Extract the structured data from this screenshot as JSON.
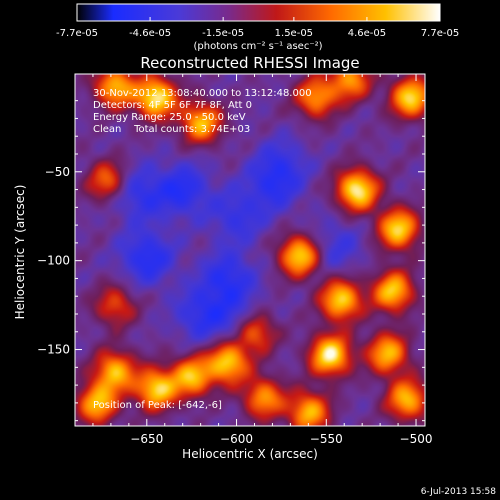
{
  "chart_data": {
    "type": "heatmap",
    "title": "Reconstructed RHESSI Image",
    "xlabel": "Heliocentric X (arcsec)",
    "ylabel": "Heliocentric Y (arcsec)",
    "xlim": [
      -690,
      -495
    ],
    "ylim": [
      -193,
      5
    ],
    "xticks": [
      -650,
      -600,
      -550,
      -500
    ],
    "yticks": [
      -50,
      -100,
      -150
    ],
    "colorbar": {
      "colormap": [
        "#000000",
        "#1a2cff",
        "#6a3aa8",
        "#7a2a6a",
        "#c01818",
        "#ff6a00",
        "#ffc000",
        "#ffffe0",
        "#ffffff"
      ],
      "min": -7.7e-05,
      "max": 7.7e-05,
      "tick_labels": [
        "-7.7e-05",
        "-4.6e-05",
        "-1.5e-05",
        "1.5e-05",
        "4.6e-05",
        "7.7e-05"
      ],
      "units": "(photons cm⁻² s⁻¹ asec⁻²)"
    },
    "annotations": {
      "time_range": "30-Nov-2012 13:08:40.000 to 13:12:48.000",
      "detectors": "Detectors: 4F 5F 6F 7F 8F, Att 0",
      "energy_range": "Energy Range: 25.0 - 50.0 keV",
      "method_counts": "Clean    Total counts: 3.74E+03",
      "peak": "Position of Peak: [-642,-6]"
    },
    "bright_regions": [
      {
        "x": -668,
        "y": -2,
        "level": 0.8
      },
      {
        "x": -645,
        "y": -8,
        "level": 1.0
      },
      {
        "x": -620,
        "y": -22,
        "level": 0.8
      },
      {
        "x": -556,
        "y": -8,
        "level": 0.7
      },
      {
        "x": -537,
        "y": 2,
        "level": 0.7
      },
      {
        "x": -503,
        "y": -8,
        "level": 0.9
      },
      {
        "x": -533,
        "y": -60,
        "level": 1.0
      },
      {
        "x": -510,
        "y": -82,
        "level": 0.9
      },
      {
        "x": -513,
        "y": -117,
        "level": 0.85
      },
      {
        "x": -542,
        "y": -122,
        "level": 0.9
      },
      {
        "x": -565,
        "y": -97,
        "level": 0.9
      },
      {
        "x": -548,
        "y": -153,
        "level": 1.0
      },
      {
        "x": -516,
        "y": -152,
        "level": 0.8
      },
      {
        "x": -505,
        "y": -178,
        "level": 0.8
      },
      {
        "x": -560,
        "y": -185,
        "level": 0.8
      },
      {
        "x": -605,
        "y": -157,
        "level": 0.9
      },
      {
        "x": -625,
        "y": -165,
        "level": 0.8
      },
      {
        "x": -645,
        "y": -172,
        "level": 0.9
      },
      {
        "x": -668,
        "y": -162,
        "level": 0.8
      },
      {
        "x": -678,
        "y": -180,
        "level": 0.8
      },
      {
        "x": -590,
        "y": -140,
        "level": 0.7
      },
      {
        "x": -585,
        "y": -177,
        "level": 0.7
      },
      {
        "x": -672,
        "y": -55,
        "level": 0.6
      },
      {
        "x": -668,
        "y": -125,
        "level": 0.5
      }
    ],
    "dark_regions": [
      {
        "x": -650,
        "y": -98,
        "level": 0.85
      },
      {
        "x": -630,
        "y": -60,
        "level": 0.8
      },
      {
        "x": -605,
        "y": -110,
        "level": 0.8
      },
      {
        "x": -655,
        "y": -62,
        "level": 0.7
      },
      {
        "x": -620,
        "y": -130,
        "level": 0.7
      },
      {
        "x": -600,
        "y": -75,
        "level": 0.6
      },
      {
        "x": -580,
        "y": -58,
        "level": 0.6
      },
      {
        "x": -598,
        "y": -135,
        "level": 0.5
      },
      {
        "x": -545,
        "y": -92,
        "level": 0.5
      },
      {
        "x": -575,
        "y": -45,
        "level": 0.5
      }
    ]
  },
  "footer": {
    "date": "6-Jul-2013 15:58"
  }
}
